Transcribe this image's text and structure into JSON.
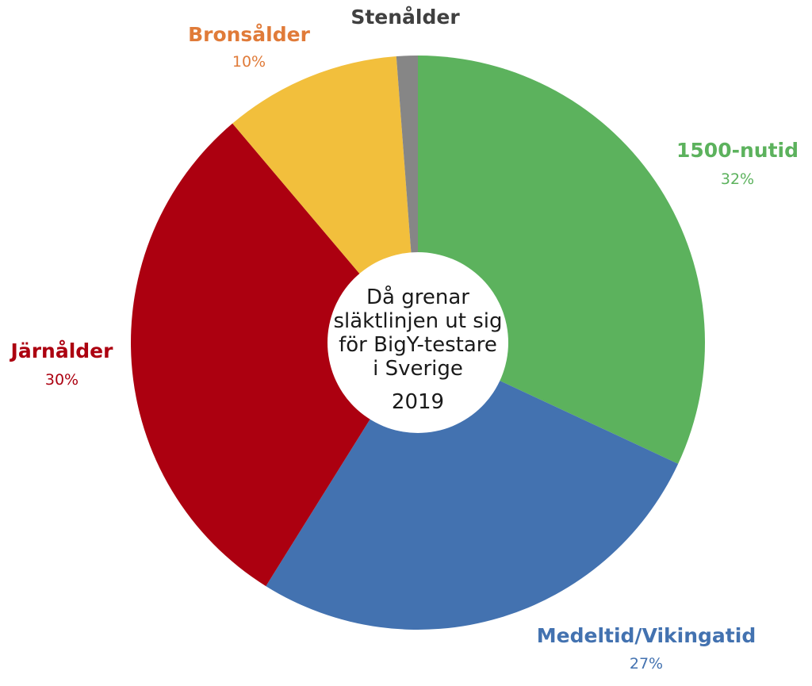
{
  "chart_data": {
    "type": "pie",
    "title": "",
    "center_text": {
      "lines": [
        "Då grenar",
        "släktlinjen ut sig",
        "för BigY-testare",
        "i Sverige"
      ],
      "year": "2019"
    },
    "slices": [
      {
        "name": "1500-nutid",
        "value": 32,
        "label": "32%",
        "color": "#5cb25d"
      },
      {
        "name": "Medeltid/Vikingatid",
        "value": 27,
        "label": "27%",
        "color": "#4372b0"
      },
      {
        "name": "Järnålder",
        "value": 30,
        "label": "30%",
        "color": "#ac0010"
      },
      {
        "name": "Bronsålder",
        "value": 10,
        "label": "10%",
        "color": "#f2bf3c"
      },
      {
        "name": "Stenålder",
        "value": 1.2,
        "label": "",
        "color": "#868686"
      }
    ],
    "label_colors": {
      "1500-nutid": "#5cb25d",
      "Medeltid/Vikingatid": "#4372b0",
      "Järnålder": "#ac0010",
      "Bronsålder": "#e07b39",
      "Stenålder": "#404040"
    }
  }
}
